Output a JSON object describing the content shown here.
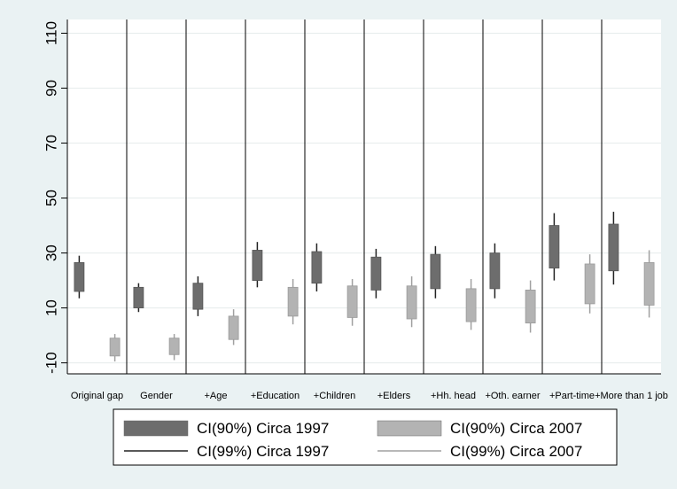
{
  "chart_data": {
    "type": "candlestick",
    "title": "",
    "xlabel": "",
    "ylabel": "",
    "ylim": [
      -14,
      115
    ],
    "yticks": [
      -10,
      10,
      30,
      50,
      70,
      90,
      110
    ],
    "grid": true,
    "legend_position": "bottom",
    "categories": [
      "Original gap",
      "Gender",
      "+Age",
      "+Education",
      "+Children",
      "+Elders",
      "+Hh. head",
      "+Oth. earner",
      "+Part-time",
      "+More than 1 job"
    ],
    "series": [
      {
        "name": "Circa 1997",
        "color": "#6d6d6d",
        "ci90_low": [
          16,
          10,
          9.5,
          20,
          19,
          16.5,
          17,
          17,
          24.5,
          23.5
        ],
        "ci90_high": [
          26.5,
          17.5,
          19,
          31,
          30.5,
          28.5,
          29.5,
          30,
          40,
          40.5
        ],
        "ci99_low": [
          13.5,
          8.5,
          7,
          17.5,
          16,
          13.5,
          13.5,
          13.5,
          20,
          18.5
        ],
        "ci99_high": [
          29,
          19,
          21.5,
          34,
          33.5,
          31.5,
          32.5,
          33.5,
          44.5,
          45
        ]
      },
      {
        "name": "Circa 2007",
        "color": "#b3b3b3",
        "ci90_low": [
          -7.5,
          -7,
          -1.5,
          7,
          6.5,
          6,
          5,
          4.5,
          11.5,
          11
        ],
        "ci90_high": [
          -1,
          -1,
          7,
          17.5,
          18,
          18,
          17,
          16.5,
          26,
          26.5
        ],
        "ci99_low": [
          -9.5,
          -9,
          -3.5,
          4,
          3.5,
          3,
          2,
          1,
          8,
          6.5
        ],
        "ci99_high": [
          0.5,
          0.5,
          9.5,
          20.5,
          20.5,
          21.5,
          20.5,
          20,
          29.5,
          31
        ]
      }
    ]
  },
  "legend": {
    "items": [
      {
        "label": "CI(90%) Circa 1997",
        "kind": "box",
        "color": "#6d6d6d"
      },
      {
        "label": "CI(90%) Circa 2007",
        "kind": "box",
        "color": "#b3b3b3"
      },
      {
        "label": "CI(99%) Circa 1997",
        "kind": "line",
        "color": "#222222"
      },
      {
        "label": "CI(99%) Circa 2007",
        "kind": "line",
        "color": "#a0a0a0"
      }
    ]
  }
}
